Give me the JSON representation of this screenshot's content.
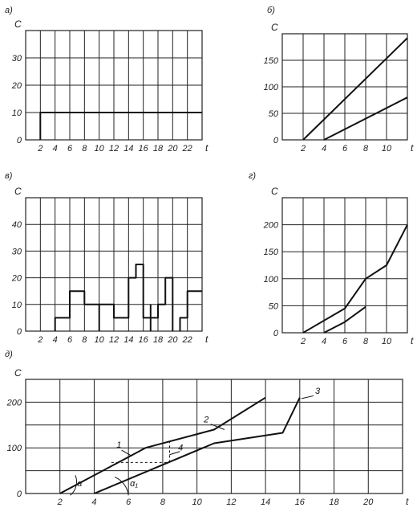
{
  "chart_data": [
    {
      "panel": "а)",
      "type": "line",
      "ylabel": "C",
      "xlabel": "t",
      "xlim": [
        0,
        24
      ],
      "ylim": [
        0,
        40
      ],
      "x_ticks": [
        2,
        4,
        6,
        8,
        10,
        12,
        14,
        16,
        18,
        20,
        22
      ],
      "y_ticks": [
        0,
        10,
        20,
        30
      ],
      "series": [
        {
          "points": [
            [
              2,
              0
            ],
            [
              2,
              10
            ],
            [
              24,
              10
            ]
          ]
        }
      ]
    },
    {
      "panel": "б)",
      "type": "line",
      "ylabel": "C",
      "xlabel": "t",
      "xlim": [
        0,
        12
      ],
      "ylim": [
        0,
        200
      ],
      "x_ticks": [
        2,
        4,
        6,
        8,
        10
      ],
      "y_ticks": [
        0,
        50,
        100,
        150
      ],
      "series": [
        {
          "points": [
            [
              2,
              0
            ],
            [
              12,
              192
            ]
          ]
        },
        {
          "points": [
            [
              4,
              0
            ],
            [
              12,
              80
            ]
          ]
        }
      ]
    },
    {
      "panel": "в)",
      "type": "line",
      "ylabel": "C",
      "xlabel": "t",
      "xlim": [
        0,
        24
      ],
      "ylim": [
        0,
        50
      ],
      "x_ticks": [
        2,
        4,
        6,
        8,
        10,
        12,
        14,
        16,
        18,
        20,
        22
      ],
      "y_ticks": [
        0,
        10,
        20,
        30,
        40
      ],
      "series": [
        {
          "points": [
            [
              4,
              0
            ],
            [
              4,
              5
            ],
            [
              6,
              5
            ],
            [
              6,
              15
            ],
            [
              8,
              15
            ],
            [
              8,
              10
            ],
            [
              12,
              10
            ],
            [
              12,
              5
            ],
            [
              14,
              5
            ],
            [
              14,
              20
            ],
            [
              15,
              20
            ],
            [
              15,
              25
            ],
            [
              16,
              25
            ],
            [
              16,
              5
            ],
            [
              18,
              5
            ],
            [
              18,
              10
            ],
            [
              19,
              10
            ],
            [
              19,
              20
            ],
            [
              20,
              20
            ],
            [
              20,
              0
            ]
          ]
        },
        {
          "points": [
            [
              10,
              0
            ],
            [
              10,
              10
            ]
          ]
        },
        {
          "points": [
            [
              17,
              0
            ],
            [
              17,
              10
            ]
          ]
        },
        {
          "points": [
            [
              21,
              0
            ],
            [
              21,
              5
            ],
            [
              22,
              5
            ],
            [
              22,
              15
            ],
            [
              24,
              15
            ]
          ]
        }
      ]
    },
    {
      "panel": "г)",
      "type": "line",
      "ylabel": "C",
      "xlabel": "t",
      "xlim": [
        0,
        12
      ],
      "ylim": [
        0,
        250
      ],
      "x_ticks": [
        2,
        4,
        6,
        8,
        10
      ],
      "y_ticks": [
        0,
        50,
        100,
        150,
        200
      ],
      "series": [
        {
          "points": [
            [
              2,
              0
            ],
            [
              6,
              45
            ],
            [
              8,
              100
            ],
            [
              10,
              125
            ],
            [
              12,
              200
            ]
          ]
        },
        {
          "points": [
            [
              4,
              0
            ],
            [
              6,
              20
            ],
            [
              8,
              48
            ]
          ]
        }
      ]
    },
    {
      "panel": "д)",
      "type": "line",
      "ylabel": "C",
      "xlabel": "t",
      "xlim": [
        0,
        22
      ],
      "ylim": [
        0,
        250
      ],
      "x_ticks": [
        2,
        4,
        6,
        8,
        10,
        12,
        14,
        16,
        18,
        20
      ],
      "y_ticks": [
        0,
        100,
        200
      ],
      "series": [
        {
          "name": "2",
          "points": [
            [
              2,
              0
            ],
            [
              6,
              80
            ],
            [
              7,
              100
            ],
            [
              11,
              140
            ],
            [
              14,
              210
            ]
          ]
        },
        {
          "name": "3",
          "points": [
            [
              4,
              0
            ],
            [
              11,
              110
            ],
            [
              15,
              133
            ],
            [
              16,
              210
            ]
          ]
        }
      ],
      "annotations": [
        "1",
        "2",
        "3",
        "4",
        "α",
        "α₁"
      ]
    }
  ]
}
